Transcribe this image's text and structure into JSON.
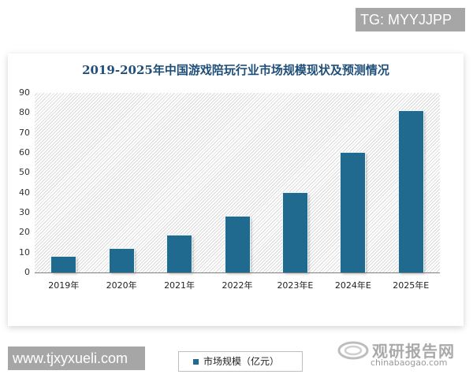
{
  "overlay": {
    "top_tag": "TG: MYYJJPP",
    "bottom_tag": "www.tjxyxueli.com"
  },
  "watermark": {
    "logo_icon": "swirl-logo-icon",
    "name_cn": "观研报告网",
    "domain": "chinabaogao.com"
  },
  "chart": {
    "title": "2019-2025年中国游戏陪玩行业市场规模现状及预测情况",
    "legend_label": "市场规模（亿元）",
    "bar_color": "#1f6a8e",
    "y_ticks": [
      "90",
      "80",
      "70",
      "60",
      "50",
      "40",
      "30",
      "20",
      "10",
      "0"
    ],
    "x_labels": [
      "2019年",
      "2020年",
      "2021年",
      "2022年",
      "2023年E",
      "2024年E",
      "2025年E"
    ]
  },
  "chart_data": {
    "type": "bar",
    "title": "2019-2025年中国游戏陪玩行业市场规模现状及预测情况",
    "categories": [
      "2019年",
      "2020年",
      "2021年",
      "2022年",
      "2023年E",
      "2024年E",
      "2025年E"
    ],
    "series": [
      {
        "name": "市场规模（亿元）",
        "values": [
          8,
          12,
          18.5,
          28,
          40,
          60,
          81
        ]
      }
    ],
    "xlabel": "",
    "ylabel": "",
    "ylim": [
      0,
      90
    ],
    "yticks": [
      0,
      10,
      20,
      30,
      40,
      50,
      60,
      70,
      80,
      90
    ],
    "grid": false,
    "legend_position": "bottom-left",
    "background": "diagonal-hatch"
  }
}
